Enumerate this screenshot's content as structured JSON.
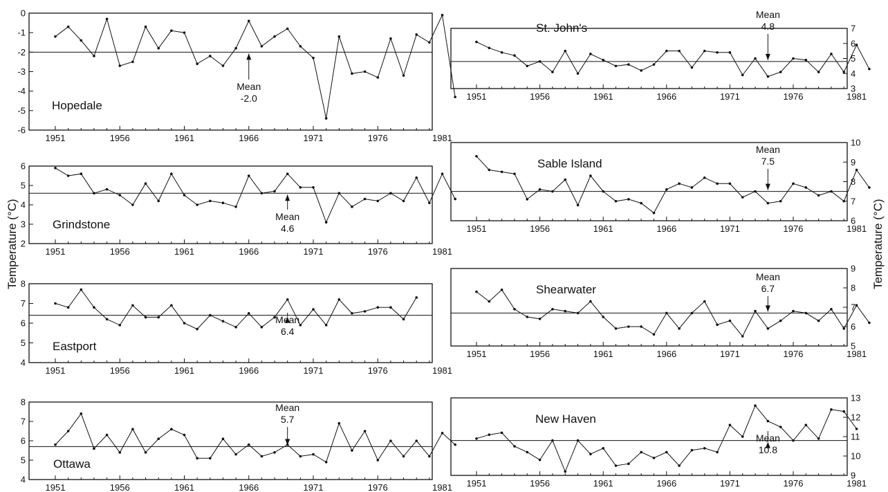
{
  "y_axis_label": "Temperature (°C)",
  "mean_word": "Mean",
  "chart_data": [
    {
      "type": "line",
      "station": "Hopedale",
      "mean": -2.0,
      "mean_label": "-2.0",
      "x": [
        1951,
        1952,
        1953,
        1954,
        1955,
        1956,
        1957,
        1958,
        1959,
        1960,
        1961,
        1962,
        1963,
        1964,
        1965,
        1966,
        1967,
        1968,
        1969,
        1970,
        1971,
        1972,
        1973,
        1974,
        1975,
        1976,
        1977,
        1978,
        1979,
        1980,
        1981,
        1982
      ],
      "values": [
        -1.2,
        -0.7,
        -1.4,
        -2.2,
        -0.3,
        -2.7,
        -2.5,
        -0.7,
        -1.8,
        -0.9,
        -1.0,
        -2.6,
        -2.2,
        -2.7,
        -1.8,
        -0.4,
        -1.7,
        -1.2,
        -0.8,
        -1.7,
        -2.3,
        -5.4,
        -1.2,
        -3.1,
        -3.0,
        -3.3,
        -1.3,
        -3.2,
        -1.1,
        -1.5,
        -0.1,
        -4.3
      ],
      "ylim": [
        -6,
        0
      ],
      "yticks": [
        0,
        -1,
        -2,
        -3,
        -4,
        -5,
        -6
      ],
      "xticks": [
        1951,
        1956,
        1961,
        1966,
        1971,
        1976,
        1981
      ],
      "yaxis_side": "left"
    },
    {
      "type": "line",
      "station": "Grindstone",
      "mean": 4.6,
      "mean_label": "4.6",
      "x": [
        1951,
        1952,
        1953,
        1954,
        1955,
        1956,
        1957,
        1958,
        1959,
        1960,
        1961,
        1962,
        1963,
        1964,
        1965,
        1966,
        1967,
        1968,
        1969,
        1970,
        1971,
        1972,
        1973,
        1974,
        1975,
        1976,
        1977,
        1978,
        1979,
        1980,
        1981,
        1982
      ],
      "values": [
        5.9,
        5.5,
        5.6,
        4.6,
        4.8,
        4.5,
        4.0,
        5.1,
        4.2,
        5.6,
        4.5,
        4.0,
        4.2,
        4.1,
        3.9,
        5.5,
        4.6,
        4.7,
        5.6,
        4.9,
        4.9,
        3.1,
        4.6,
        3.9,
        4.3,
        4.2,
        4.6,
        4.2,
        5.4,
        4.1,
        5.6,
        4.3
      ],
      "ylim": [
        2,
        6
      ],
      "yticks": [
        6,
        5,
        4,
        3,
        2
      ],
      "xticks": [
        1951,
        1956,
        1961,
        1966,
        1971,
        1976,
        1981
      ],
      "yaxis_side": "left"
    },
    {
      "type": "line",
      "station": "Eastport",
      "mean": 6.4,
      "mean_label": "6.4",
      "x": [
        1951,
        1952,
        1953,
        1954,
        1955,
        1956,
        1957,
        1958,
        1959,
        1960,
        1961,
        1962,
        1963,
        1964,
        1965,
        1966,
        1967,
        1968,
        1969,
        1970,
        1971,
        1972,
        1973,
        1974,
        1975,
        1976,
        1977,
        1978,
        1979
      ],
      "values": [
        7.0,
        6.8,
        7.7,
        6.8,
        6.2,
        5.9,
        6.9,
        6.3,
        6.3,
        6.9,
        6.0,
        5.7,
        6.4,
        6.1,
        5.8,
        6.5,
        5.8,
        6.3,
        7.2,
        5.9,
        6.7,
        5.9,
        7.2,
        6.5,
        6.6,
        6.8,
        6.8,
        6.2,
        7.3
      ],
      "ylim": [
        4,
        8
      ],
      "yticks": [
        8,
        7,
        6,
        5,
        4
      ],
      "xticks": [
        1951,
        1956,
        1961,
        1966,
        1971,
        1976,
        1981
      ],
      "yaxis_side": "left"
    },
    {
      "type": "line",
      "station": "Ottawa",
      "mean": 5.7,
      "mean_label": "5.7",
      "x": [
        1951,
        1952,
        1953,
        1954,
        1955,
        1956,
        1957,
        1958,
        1959,
        1960,
        1961,
        1962,
        1963,
        1964,
        1965,
        1966,
        1967,
        1968,
        1969,
        1970,
        1971,
        1972,
        1973,
        1974,
        1975,
        1976,
        1977,
        1978,
        1979,
        1980,
        1981,
        1982
      ],
      "values": [
        5.8,
        6.5,
        7.4,
        5.6,
        6.3,
        5.4,
        6.6,
        5.4,
        6.1,
        6.6,
        6.3,
        5.1,
        5.1,
        6.1,
        5.3,
        5.8,
        5.2,
        5.4,
        5.8,
        5.2,
        5.3,
        4.9,
        6.9,
        5.5,
        6.5,
        5.0,
        6.0,
        5.2,
        6.0,
        5.2,
        6.4,
        5.8
      ],
      "ylim": [
        4,
        8
      ],
      "yticks": [
        8,
        7,
        6,
        5,
        4
      ],
      "xticks": [
        1951,
        1956,
        1961,
        1966,
        1971,
        1976,
        1981
      ],
      "yaxis_side": "left"
    },
    {
      "type": "line",
      "station": "St. John's",
      "mean": 4.8,
      "mean_label": "4.8",
      "x": [
        1951,
        1952,
        1953,
        1954,
        1955,
        1956,
        1957,
        1958,
        1959,
        1960,
        1961,
        1962,
        1963,
        1964,
        1965,
        1966,
        1967,
        1968,
        1969,
        1970,
        1971,
        1972,
        1973,
        1974,
        1975,
        1976,
        1977,
        1978,
        1979,
        1980,
        1981,
        1982
      ],
      "values": [
        6.1,
        5.7,
        5.4,
        5.2,
        4.5,
        4.8,
        4.1,
        5.5,
        4.0,
        5.3,
        4.9,
        4.5,
        4.6,
        4.2,
        4.6,
        5.5,
        5.5,
        4.4,
        5.5,
        5.4,
        5.4,
        3.9,
        5.0,
        3.8,
        4.1,
        5.0,
        4.9,
        4.1,
        5.3,
        4.1,
        5.9,
        4.3
      ],
      "ylim": [
        3,
        7
      ],
      "yticks": [
        7,
        6,
        5,
        4,
        3
      ],
      "xticks": [
        1951,
        1956,
        1961,
        1966,
        1971,
        1976,
        1981
      ],
      "yaxis_side": "right"
    },
    {
      "type": "line",
      "station": "Sable Island",
      "mean": 7.5,
      "mean_label": "7.5",
      "x": [
        1951,
        1952,
        1953,
        1954,
        1955,
        1956,
        1957,
        1958,
        1959,
        1960,
        1961,
        1962,
        1963,
        1964,
        1965,
        1966,
        1967,
        1968,
        1969,
        1970,
        1971,
        1972,
        1973,
        1974,
        1975,
        1976,
        1977,
        1978,
        1979,
        1980,
        1981,
        1982
      ],
      "values": [
        9.3,
        8.6,
        8.5,
        8.4,
        7.1,
        7.6,
        7.5,
        8.1,
        6.8,
        8.3,
        7.5,
        7.0,
        7.1,
        6.9,
        6.4,
        7.6,
        7.9,
        7.7,
        8.2,
        7.9,
        7.9,
        7.2,
        7.5,
        6.9,
        7.0,
        7.9,
        7.7,
        7.3,
        7.5,
        7.0,
        8.6,
        7.7
      ],
      "ylim": [
        6,
        10
      ],
      "yticks": [
        10,
        9,
        8,
        7,
        6
      ],
      "xticks": [
        1951,
        1956,
        1961,
        1966,
        1971,
        1976,
        1981
      ],
      "yaxis_side": "right"
    },
    {
      "type": "line",
      "station": "Shearwater",
      "mean": 6.7,
      "mean_label": "6.7",
      "x": [
        1951,
        1952,
        1953,
        1954,
        1955,
        1956,
        1957,
        1958,
        1959,
        1960,
        1961,
        1962,
        1963,
        1964,
        1965,
        1966,
        1967,
        1968,
        1969,
        1970,
        1971,
        1972,
        1973,
        1974,
        1975,
        1976,
        1977,
        1978,
        1979,
        1980,
        1981,
        1982
      ],
      "values": [
        7.8,
        7.3,
        7.9,
        6.9,
        6.5,
        6.4,
        6.9,
        6.8,
        6.7,
        7.3,
        6.5,
        5.9,
        6.0,
        6.0,
        5.6,
        6.7,
        5.9,
        6.7,
        7.3,
        6.1,
        6.3,
        5.5,
        6.8,
        5.9,
        6.3,
        6.8,
        6.7,
        6.3,
        6.9,
        5.9,
        7.1,
        6.2
      ],
      "ylim": [
        5,
        9
      ],
      "yticks": [
        9,
        8,
        7,
        6,
        5
      ],
      "xticks": [
        1951,
        1956,
        1961,
        1966,
        1971,
        1976,
        1981
      ],
      "yaxis_side": "right"
    },
    {
      "type": "line",
      "station": "New Haven",
      "mean": 10.8,
      "mean_label": "10.8",
      "x": [
        1951,
        1952,
        1953,
        1954,
        1955,
        1956,
        1957,
        1958,
        1959,
        1960,
        1961,
        1962,
        1963,
        1964,
        1965,
        1966,
        1967,
        1968,
        1969,
        1970,
        1971,
        1972,
        1973,
        1974,
        1975,
        1976,
        1977,
        1978,
        1979,
        1980,
        1981
      ],
      "values": [
        10.9,
        11.1,
        11.2,
        10.5,
        10.2,
        9.8,
        10.8,
        9.2,
        10.8,
        10.1,
        10.4,
        9.5,
        9.6,
        10.2,
        9.9,
        10.2,
        9.5,
        10.3,
        10.4,
        10.2,
        11.6,
        11.0,
        12.6,
        11.8,
        11.5,
        10.8,
        11.6,
        10.9,
        12.4,
        12.3,
        11.4
      ],
      "ylim": [
        9,
        13
      ],
      "yticks": [
        13,
        12,
        11,
        10,
        9
      ],
      "xticks": [
        1951,
        1956,
        1961,
        1966,
        1971,
        1976,
        1981
      ],
      "yaxis_side": "right"
    }
  ]
}
